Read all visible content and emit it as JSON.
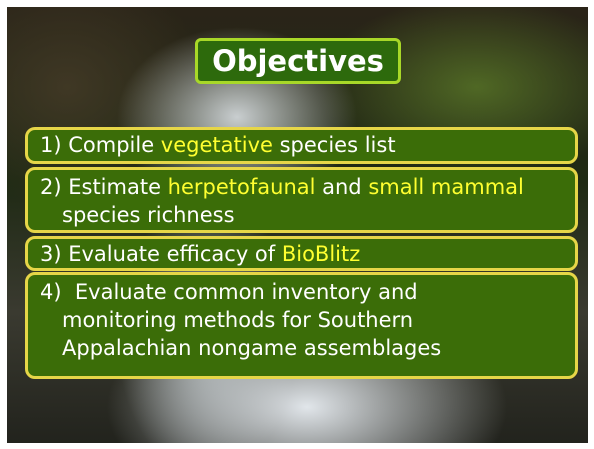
{
  "title": "Objectives",
  "objectives": [
    {
      "lines": [
        [
          {
            "text": "1) Compile ",
            "highlight": false
          },
          {
            "text": "vegetative",
            "highlight": true
          },
          {
            "text": " species list",
            "highlight": false
          }
        ]
      ]
    },
    {
      "lines": [
        [
          {
            "text": "2) Estimate ",
            "highlight": false
          },
          {
            "text": "herpetofaunal",
            "highlight": true
          },
          {
            "text": " and ",
            "highlight": false
          },
          {
            "text": "small mammal",
            "highlight": true
          }
        ],
        [
          {
            "text": "species richness",
            "highlight": false
          }
        ]
      ]
    },
    {
      "lines": [
        [
          {
            "text": "3) Evaluate efficacy of ",
            "highlight": false
          },
          {
            "text": "BioBlitz",
            "highlight": true
          }
        ]
      ]
    },
    {
      "lines": [
        [
          {
            "text": "4)  Evaluate common inventory and",
            "highlight": false
          }
        ],
        [
          {
            "text": "monitoring methods for Southern",
            "highlight": false
          }
        ],
        [
          {
            "text": "Appalachian nongame assemblages",
            "highlight": false
          }
        ]
      ]
    }
  ]
}
